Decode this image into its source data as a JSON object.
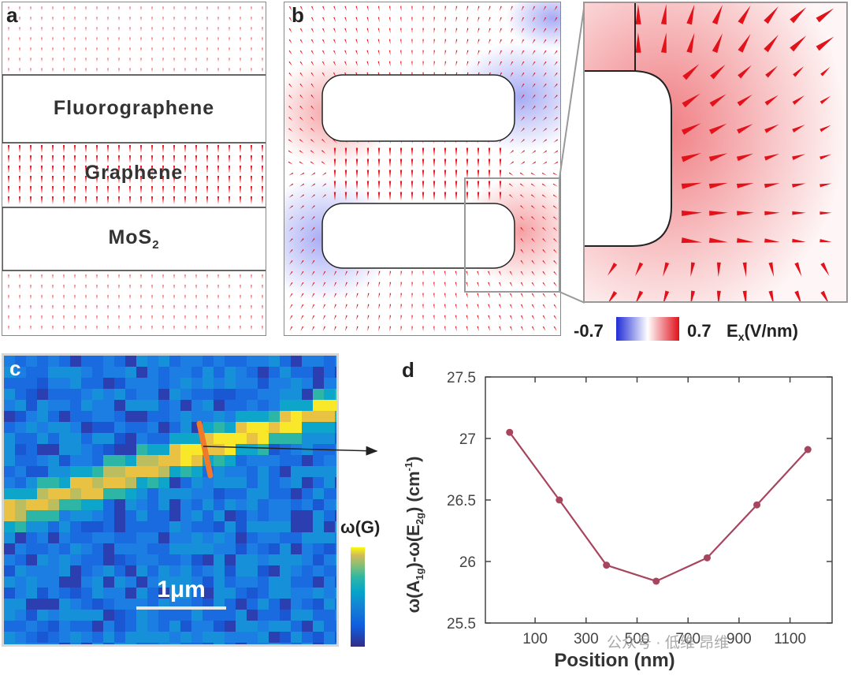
{
  "panel_labels": {
    "a": "a",
    "b": "b",
    "c": "c",
    "d": "d"
  },
  "panel_a": {
    "layers": [
      "Fluorographene",
      "Graphene",
      "MoS",
      "2"
    ]
  },
  "colorbar_ex": {
    "min_label": "-0.7",
    "max_label": "0.7",
    "quantity": "E",
    "quantity_sub": "x",
    "unit": "(V/nm)",
    "low_color": "#1f2bd6",
    "mid_color": "#ffffff",
    "high_color": "#e0101a"
  },
  "panel_c": {
    "scale_bar_label": "1μm",
    "colorbar_label": "ω(G)",
    "line_color": "#f07a2a"
  },
  "chart_data": {
    "type": "line",
    "x": [
      0,
      195,
      380,
      575,
      775,
      970,
      1170
    ],
    "values": [
      27.05,
      26.5,
      25.97,
      25.84,
      26.03,
      26.46,
      26.91
    ],
    "ylim": [
      25.5,
      27.5
    ],
    "xlim": [
      -95,
      1265
    ],
    "xticks": [
      100,
      300,
      500,
      700,
      900,
      1100
    ],
    "xtick_labels": [
      "100",
      "300",
      "500",
      "700",
      "900",
      "1100"
    ],
    "yticks": [
      25.5,
      26,
      26.5,
      27,
      27.5
    ],
    "ytick_labels": [
      "25.5",
      "26",
      "26.5",
      "27",
      "27.5"
    ],
    "xlabel": "Position (nm)",
    "ylabel": "ω(A1g)-ω(E2g) (cm-1)",
    "ylabel_parts": [
      "ω(A",
      "1g",
      ")-ω(E",
      "2g",
      ") (cm",
      "-1",
      ")"
    ],
    "series_color": "#a8455e"
  },
  "watermark": "公众号 · 低维 昂维"
}
